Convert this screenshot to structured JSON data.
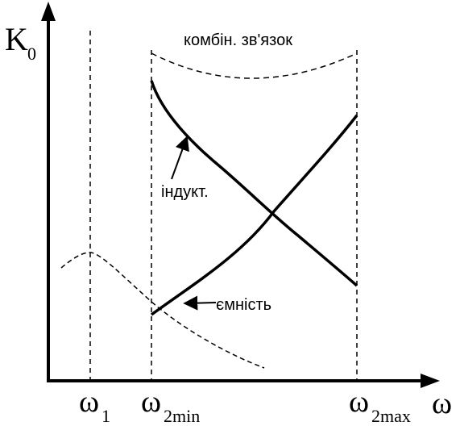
{
  "axes": {
    "y_label_main": "K",
    "y_label_sub": "0",
    "x_label": "ω"
  },
  "ticks": {
    "w1_main": "ω",
    "w1_sub": "1",
    "w2min_main": "ω",
    "w2min_sub": "2min",
    "w2max_main": "ω",
    "w2max_sub": "2max"
  },
  "annotations": {
    "combined": "комбін. зв'язок",
    "inductive": "індукт.",
    "capacitive": "ємність"
  }
}
